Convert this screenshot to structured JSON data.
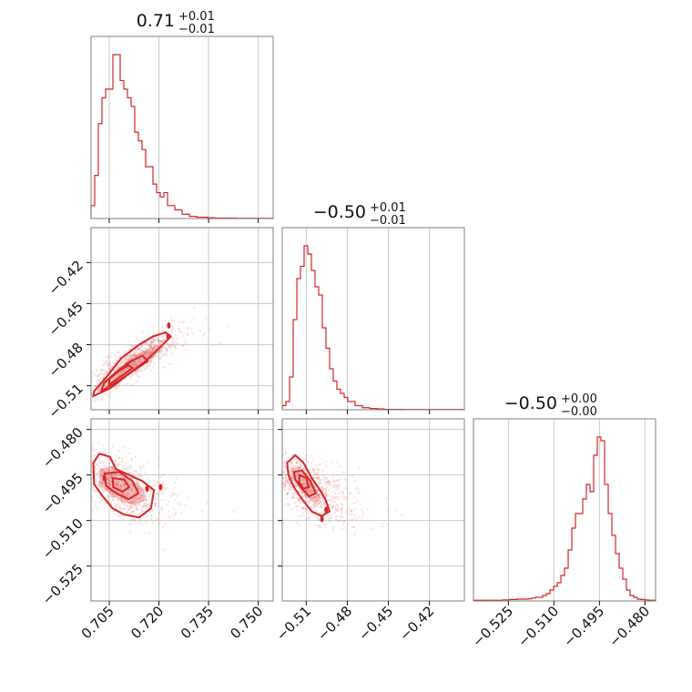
{
  "colors": {
    "series": "#d62728",
    "grid": "#c8c8c8",
    "frame": "#7f7f7f"
  },
  "chart_data": {
    "type": "corner",
    "grid": true,
    "parameters": [
      {
        "title": {
          "median": "0.71",
          "plus": "+0.01",
          "minus": "−0.01"
        },
        "range": [
          0.6995,
          0.7545
        ],
        "ticks": [
          0.705,
          0.72,
          0.735,
          0.75
        ],
        "tick_labels": [
          "0.705",
          "0.720",
          "0.735",
          "0.750"
        ],
        "hist": {
          "start": 0.6995,
          "step": 0.0011,
          "counts": [
            3,
            10,
            22,
            28,
            30,
            30,
            38,
            38,
            32,
            30,
            28,
            26,
            20,
            18,
            16,
            12,
            12,
            8,
            6,
            5,
            6,
            3,
            3,
            2,
            2,
            1,
            1,
            0.5,
            0.5,
            0.3,
            0.3,
            0.3,
            0.2,
            0.2,
            0.1,
            0.1,
            0.1,
            0.1,
            0.1,
            0.1,
            0.05,
            0.05,
            0.05,
            0.05,
            0.05,
            0.05,
            0.05,
            0.05,
            0.05,
            0.05
          ]
        }
      },
      {
        "title": {
          "median": "−0.50",
          "plus": "+0.01",
          "minus": "−0.01"
        },
        "range": [
          -0.5275,
          -0.3945
        ],
        "ticks": [
          -0.51,
          -0.48,
          -0.45,
          -0.42
        ],
        "tick_labels": [
          "−0.51",
          "−0.48",
          "−0.45",
          "−0.42"
        ],
        "hist": {
          "start": -0.5275,
          "step": 0.00266,
          "counts": [
            1,
            2,
            8,
            22,
            32,
            35,
            40,
            38,
            34,
            30,
            28,
            20,
            15,
            10,
            7,
            5,
            4,
            3,
            2,
            2,
            1,
            1,
            0.5,
            0.5,
            0.3,
            0.3,
            0.2,
            0.2,
            0.1,
            0.1,
            0.1,
            0.1,
            0.1,
            0.05,
            0.05,
            0.05,
            0.05,
            0.05,
            0.05,
            0.05,
            0.05,
            0.05,
            0.05,
            0.05,
            0.05,
            0.05,
            0.05,
            0.05,
            0.05,
            0.05
          ]
        }
      },
      {
        "title": {
          "median": "−0.50",
          "plus": "+0.00",
          "minus": "−0.00"
        },
        "range": [
          -0.5365,
          -0.4765
        ],
        "ticks": [
          -0.525,
          -0.51,
          -0.495,
          -0.48
        ],
        "tick_labels": [
          "−0.525",
          "−0.510",
          "−0.495",
          "−0.480"
        ],
        "hist": {
          "start": -0.5365,
          "step": 0.0012,
          "counts": [
            0.2,
            0.2,
            0.2,
            0.2,
            0.2,
            0.2,
            0.2,
            0.2,
            0.3,
            0.3,
            0.4,
            0.4,
            0.5,
            0.5,
            0.5,
            0.6,
            0.8,
            1,
            1,
            1.5,
            2,
            3,
            4,
            5,
            7,
            9,
            14,
            20,
            24,
            24,
            28,
            32,
            30,
            40,
            45,
            44,
            32,
            24,
            18,
            13,
            9,
            6,
            3,
            1.5,
            1,
            0.5,
            0.4,
            0.3,
            0.2,
            0.2
          ]
        }
      }
    ],
    "pairs": [
      {
        "x_param": 0,
        "y_param": 1,
        "n_points": 900,
        "corr": 0.85,
        "contours": [
          {
            "kind": "line",
            "points": [
              [
                0.7002,
                -0.5175
              ],
              [
                0.7052,
                -0.512
              ],
              [
                0.7116,
                -0.5
              ],
              [
                0.716,
                -0.492
              ],
              [
                0.722,
                -0.478
              ],
              [
                0.7236,
                -0.474
              ],
              [
                0.722,
                -0.471
              ],
              [
                0.7182,
                -0.474
              ],
              [
                0.714,
                -0.48
              ],
              [
                0.7086,
                -0.49
              ],
              [
                0.704,
                -0.504
              ],
              [
                0.7004,
                -0.514
              ]
            ]
          },
          {
            "kind": "fill",
            "points": [
              [
                0.701,
                -0.516
              ],
              [
                0.706,
                -0.51
              ],
              [
                0.712,
                -0.499
              ],
              [
                0.718,
                -0.49
              ],
              [
                0.721,
                -0.483
              ],
              [
                0.7196,
                -0.48
              ],
              [
                0.7158,
                -0.484
              ],
              [
                0.711,
                -0.491
              ],
              [
                0.706,
                -0.501
              ],
              [
                0.7016,
                -0.511
              ]
            ]
          },
          {
            "kind": "line",
            "points": [
              [
                0.7026,
                -0.514
              ],
              [
                0.708,
                -0.506
              ],
              [
                0.713,
                -0.498
              ],
              [
                0.7166,
                -0.492
              ],
              [
                0.715,
                -0.488
              ],
              [
                0.7116,
                -0.492
              ],
              [
                0.7076,
                -0.499
              ],
              [
                0.7034,
                -0.508
              ]
            ]
          },
          {
            "kind": "line",
            "points": [
              [
                0.705,
                -0.509
              ],
              [
                0.7098,
                -0.501
              ],
              [
                0.712,
                -0.497
              ],
              [
                0.7108,
                -0.495
              ],
              [
                0.708,
                -0.499
              ],
              [
                0.705,
                -0.505
              ]
            ]
          }
        ],
        "peaks": [
          [
            0.723,
            -0.466
          ],
          [
            0.7228,
            -0.474
          ]
        ]
      },
      {
        "x_param": 0,
        "y_param": 2,
        "n_points": 900,
        "corr": -0.55,
        "contours": [
          {
            "kind": "line",
            "points": [
              [
                0.7002,
                -0.491
              ],
              [
                0.702,
                -0.488
              ],
              [
                0.7052,
                -0.489
              ],
              [
                0.707,
                -0.493
              ],
              [
                0.711,
                -0.495
              ],
              [
                0.715,
                -0.497
              ],
              [
                0.7185,
                -0.5
              ],
              [
                0.7176,
                -0.506
              ],
              [
                0.714,
                -0.509
              ],
              [
                0.7094,
                -0.508
              ],
              [
                0.706,
                -0.506
              ],
              [
                0.703,
                -0.502
              ],
              [
                0.7004,
                -0.498
              ]
            ]
          },
          {
            "kind": "fill",
            "points": [
              [
                0.702,
                -0.493
              ],
              [
                0.706,
                -0.492
              ],
              [
                0.71,
                -0.495
              ],
              [
                0.715,
                -0.499
              ],
              [
                0.7162,
                -0.503
              ],
              [
                0.713,
                -0.505
              ],
              [
                0.709,
                -0.504
              ],
              [
                0.705,
                -0.501
              ],
              [
                0.702,
                -0.498
              ]
            ]
          },
          {
            "kind": "line",
            "points": [
              [
                0.7036,
                -0.4945
              ],
              [
                0.708,
                -0.494
              ],
              [
                0.712,
                -0.497
              ],
              [
                0.7138,
                -0.501
              ],
              [
                0.7108,
                -0.503
              ],
              [
                0.707,
                -0.501
              ],
              [
                0.704,
                -0.4985
              ]
            ]
          },
          {
            "kind": "line",
            "points": [
              [
                0.706,
                -0.496
              ],
              [
                0.7095,
                -0.4965
              ],
              [
                0.711,
                -0.499
              ],
              [
                0.709,
                -0.5005
              ],
              [
                0.7062,
                -0.499
              ]
            ]
          }
        ],
        "peaks": [
          [
            0.7164,
            -0.4995
          ],
          [
            0.7205,
            -0.499
          ],
          [
            0.7035,
            -0.496
          ]
        ]
      },
      {
        "x_param": 1,
        "y_param": 2,
        "n_points": 900,
        "corr": -0.6,
        "contours": [
          {
            "kind": "line",
            "points": [
              [
                -0.524,
                -0.491
              ],
              [
                -0.518,
                -0.4885
              ],
              [
                -0.512,
                -0.491
              ],
              [
                -0.506,
                -0.496
              ],
              [
                -0.5,
                -0.5
              ],
              [
                -0.496,
                -0.503
              ],
              [
                -0.493,
                -0.507
              ],
              [
                -0.499,
                -0.5085
              ],
              [
                -0.506,
                -0.507
              ],
              [
                -0.513,
                -0.503
              ],
              [
                -0.519,
                -0.499
              ],
              [
                -0.523,
                -0.495
              ]
            ]
          },
          {
            "kind": "fill",
            "points": [
              [
                -0.521,
                -0.493
              ],
              [
                -0.515,
                -0.492
              ],
              [
                -0.509,
                -0.495
              ],
              [
                -0.503,
                -0.499
              ],
              [
                -0.499,
                -0.503
              ],
              [
                -0.504,
                -0.5045
              ],
              [
                -0.51,
                -0.502
              ],
              [
                -0.516,
                -0.499
              ],
              [
                -0.52,
                -0.496
              ]
            ]
          },
          {
            "kind": "line",
            "points": [
              [
                -0.519,
                -0.494
              ],
              [
                -0.513,
                -0.4935
              ],
              [
                -0.507,
                -0.497
              ],
              [
                -0.503,
                -0.501
              ],
              [
                -0.508,
                -0.502
              ],
              [
                -0.514,
                -0.499
              ],
              [
                -0.518,
                -0.4965
              ]
            ]
          },
          {
            "kind": "line",
            "points": [
              [
                -0.515,
                -0.495
              ],
              [
                -0.51,
                -0.496
              ],
              [
                -0.508,
                -0.499
              ],
              [
                -0.512,
                -0.4995
              ],
              [
                -0.515,
                -0.4975
              ]
            ]
          }
        ],
        "peaks": [
          [
            -0.4985,
            -0.5095
          ],
          [
            -0.4955,
            -0.5065
          ]
        ]
      }
    ]
  }
}
